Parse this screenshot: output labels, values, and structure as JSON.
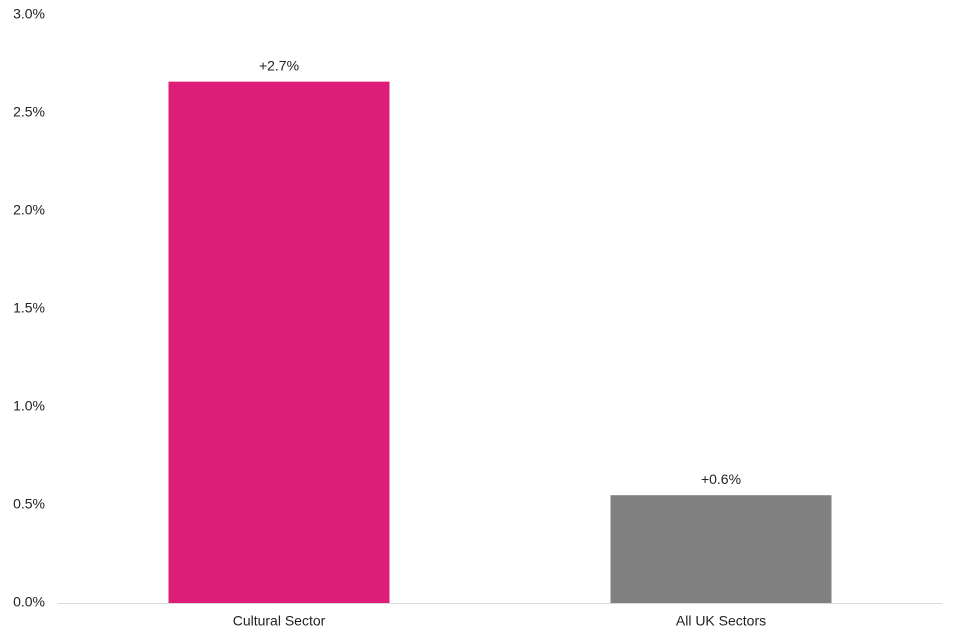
{
  "chart_data": {
    "type": "bar",
    "categories": [
      "Cultural Sector",
      "All UK Sectors"
    ],
    "values": [
      2.66,
      0.55
    ],
    "value_labels": [
      "+2.7%",
      "+0.6%"
    ],
    "colors": [
      "#de1d78",
      "#808080"
    ],
    "ylim": [
      0,
      3
    ],
    "yticks": [
      {
        "value": 0,
        "label": "0.0%"
      },
      {
        "value": 0.5,
        "label": "0.5%"
      },
      {
        "value": 1,
        "label": "1.0%"
      },
      {
        "value": 1.5,
        "label": "1.5%"
      },
      {
        "value": 2,
        "label": "2.0%"
      },
      {
        "value": 2.5,
        "label": "2.5%"
      },
      {
        "value": 3,
        "label": "3.0%"
      }
    ],
    "grid": false
  }
}
